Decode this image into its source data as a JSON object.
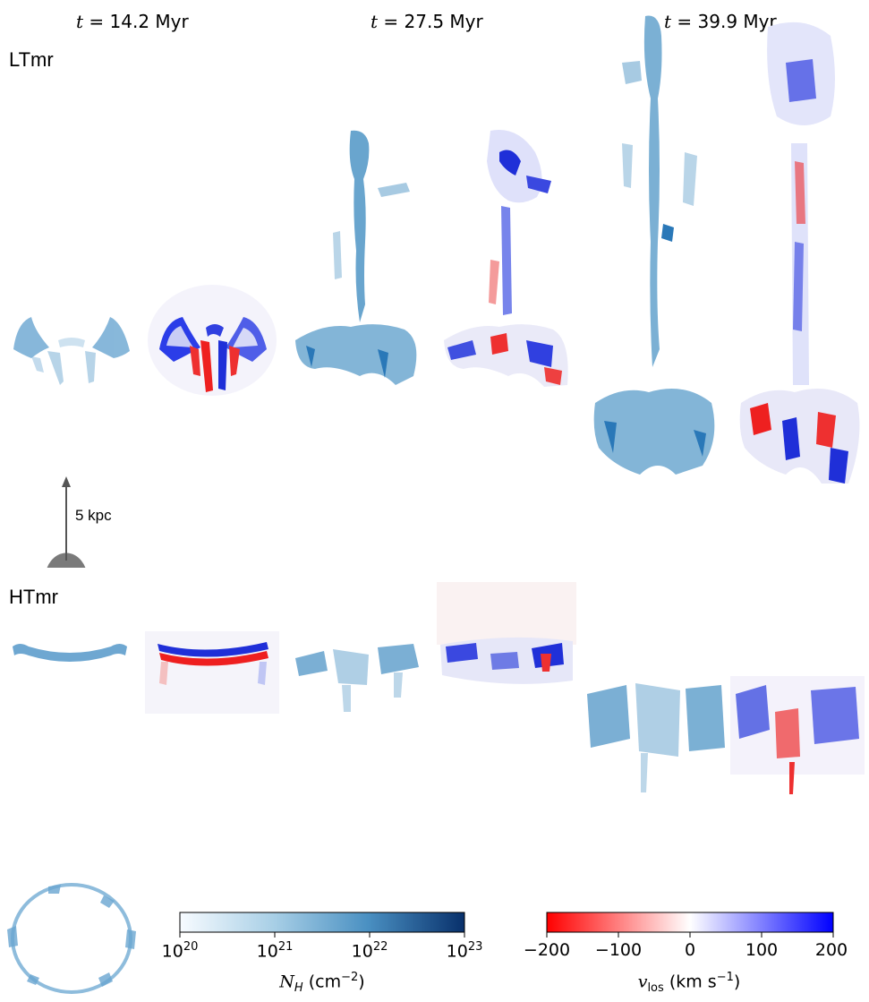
{
  "time_labels": [
    {
      "prefix": "t",
      "suffix": " = 14.2 Myr"
    },
    {
      "prefix": "t",
      "suffix": " = 27.5 Myr"
    },
    {
      "prefix": "t",
      "suffix": " = 39.9 Myr"
    }
  ],
  "rows": [
    {
      "label": "LTmr"
    },
    {
      "label": "HTmr"
    }
  ],
  "scale_bar": {
    "label": "5 kpc"
  },
  "colorbars": [
    {
      "name": "column-density",
      "title_base": "N",
      "title_sub": "H",
      "title_unit": " (cm",
      "title_exp": "−2",
      "title_close": ")",
      "scale": "log",
      "range": [
        1e+20,
        1e+23
      ],
      "ticks": [
        {
          "base": "10",
          "exp": "20"
        },
        {
          "base": "10",
          "exp": "21"
        },
        {
          "base": "10",
          "exp": "22"
        },
        {
          "base": "10",
          "exp": "23"
        }
      ],
      "colors": [
        "#f7fbff",
        "#9ecae1",
        "#4292c6",
        "#08306b"
      ]
    },
    {
      "name": "los-velocity",
      "title_base": "v",
      "title_sub": "los",
      "title_unit": " (km s",
      "title_exp": "−1",
      "title_close": ")",
      "scale": "linear",
      "range": [
        -200,
        200
      ],
      "ticks": [
        "−200",
        "−100",
        "0",
        "100",
        "200"
      ],
      "colors": [
        "#ff0000",
        "#ffffff",
        "#0000ff"
      ]
    }
  ],
  "colors": {
    "column_density_mid": "#4a90c2",
    "velocity_red": "#ff0000",
    "velocity_blue": "#0000ff",
    "scale_grey": "#7a7a7a"
  }
}
